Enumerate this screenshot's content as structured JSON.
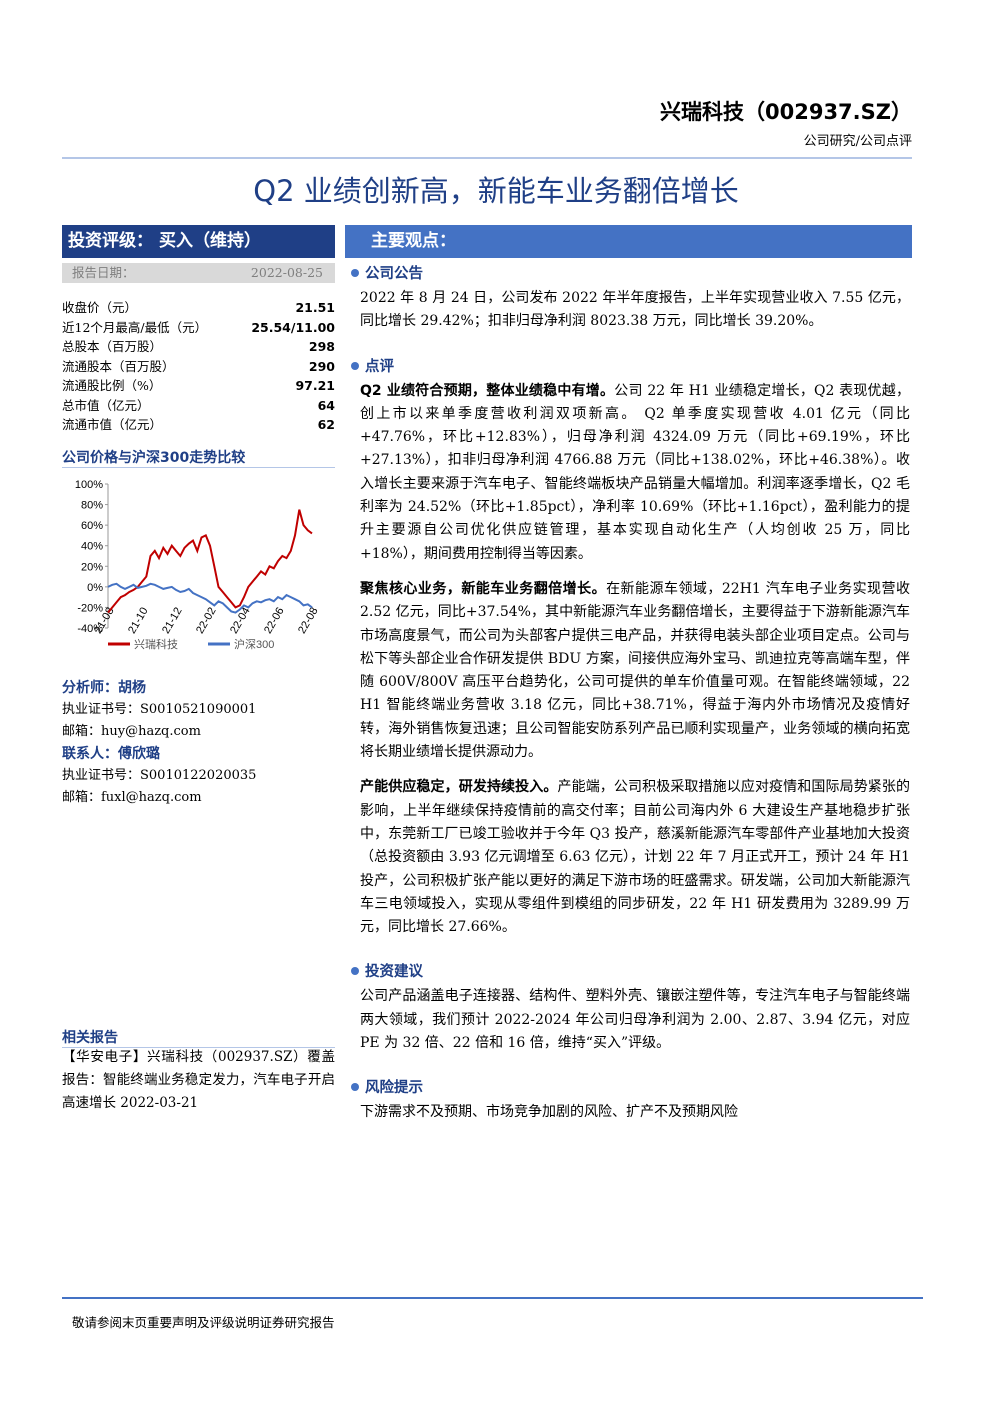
{
  "header": {
    "company": "兴瑞科技（002937.SZ）",
    "category": "公司研究/公司点评"
  },
  "title": "Q2 业绩创新高，新能车业务翻倍增长",
  "rating": {
    "label": "投资评级：",
    "value": "买入（维持）"
  },
  "report_date": {
    "label": "报告日期：",
    "value": "2022-08-25"
  },
  "stock_table": [
    [
      "收盘价（元）",
      "21.51"
    ],
    [
      "近12个月最高/最低（元）",
      "25.54/11.00"
    ],
    [
      "总股本（百万股）",
      "298"
    ],
    [
      "流通股本（百万股）",
      "290"
    ],
    [
      "流通股比例（%）",
      "97.21"
    ],
    [
      "总市值（亿元）",
      "64"
    ],
    [
      "流通市值（亿元）",
      "62"
    ]
  ],
  "chart_data": {
    "type": "line",
    "title": "公司价格与沪深300走势比较",
    "categories": [
      "21-08",
      null,
      null,
      null,
      null,
      null,
      null,
      null,
      "21-10",
      null,
      null,
      null,
      null,
      null,
      null,
      null,
      "21-12",
      null,
      null,
      null,
      null,
      null,
      null,
      null,
      "22-02",
      null,
      null,
      null,
      null,
      null,
      null,
      null,
      "22-04",
      null,
      null,
      null,
      null,
      null,
      null,
      null,
      "22-06",
      null,
      null,
      null,
      null,
      null,
      null,
      null,
      "22-08"
    ],
    "series": [
      {
        "name": "兴瑞科技",
        "color": "#c00000",
        "values": [
          -25,
          -20,
          -15,
          -10,
          -8,
          -5,
          -3,
          0,
          5,
          10,
          30,
          35,
          28,
          38,
          32,
          40,
          35,
          30,
          38,
          42,
          45,
          35,
          48,
          50,
          40,
          20,
          0,
          -5,
          -10,
          -15,
          -20,
          -18,
          -10,
          0,
          5,
          10,
          15,
          12,
          20,
          18,
          25,
          30,
          28,
          35,
          50,
          75,
          60,
          55,
          52
        ]
      },
      {
        "name": "沪深300",
        "color": "#4472c4",
        "values": [
          0,
          2,
          3,
          0,
          -2,
          0,
          2,
          -1,
          0,
          1,
          3,
          2,
          0,
          -2,
          -1,
          0,
          -3,
          -5,
          -4,
          -2,
          -6,
          -8,
          -10,
          -12,
          -15,
          -18,
          -14,
          -16,
          -20,
          -24,
          -25,
          -22,
          -18,
          -20,
          -16,
          -14,
          -15,
          -13,
          -12,
          -14,
          -10,
          -12,
          -8,
          -10,
          -12,
          -14,
          -18,
          -17,
          -20
        ]
      }
    ],
    "ylim": [
      -40,
      100
    ],
    "yticks": [
      {
        "value": 100,
        "label": "100%"
      },
      {
        "value": 80,
        "label": "80%"
      },
      {
        "value": 60,
        "label": "60%"
      },
      {
        "value": 40,
        "label": "40%"
      },
      {
        "value": 20,
        "label": "20%"
      },
      {
        "value": 0,
        "label": "0%"
      },
      {
        "value": -20,
        "label": "-20%"
      },
      {
        "value": -40,
        "label": "-40%"
      }
    ]
  },
  "analysts": [
    {
      "title": "分析师：胡杨",
      "lines": [
        "执业证书号：S0010521090001",
        "邮箱：huy@hazq.com"
      ]
    },
    {
      "title": "联系人：傅欣璐",
      "lines": [
        "执业证书号：S0010122020035",
        "邮箱：fuxl@hazq.com"
      ]
    }
  ],
  "related": {
    "heading": "相关报告",
    "text": "【华安电子】兴瑞科技（002937.SZ）覆盖报告：智能终端业务稳定发力，汽车电子开启高速增长 2022-03-21"
  },
  "main_heading": "主要观点：",
  "sections": [
    {
      "heading": "公司公告",
      "paragraphs": [
        {
          "lead": "",
          "text": "2022 年 8 月 24 日，公司发布 2022 年半年度报告，上半年实现营业收入 7.55 亿元，同比增长 29.42%；扣非归母净利润 8023.38 万元，同比增长 39.20%。"
        }
      ]
    },
    {
      "heading": "点评",
      "paragraphs": [
        {
          "lead": "Q2 业绩符合预期，整体业绩稳中有增。",
          "text": "公司 22 年 H1 业绩稳定增长，Q2 表现优越，创上市以来单季度营收利润双项新高。 Q2 单季度实现营收 4.01 亿元（同比+47.76%，环比+12.83%），归母净利润 4324.09 万元（同比+69.19%，环比+27.13%），扣非归母净利润 4766.88 万元（同比+138.02%，环比+46.38%）。收入增长主要来源于汽车电子、智能终端板块产品销量大幅增加。利润率逐季增长，Q2 毛利率为 24.52%（环比+1.85pct），净利率 10.69%（环比+1.16pct），盈利能力的提升主要源自公司优化供应链管理，基本实现自动化生产（人均创收 25 万，同比+18%），期间费用控制得当等因素。"
        },
        {
          "lead": "聚焦核心业务，新能车业务翻倍增长。",
          "text": "在新能源车领域，22H1 汽车电子业务实现营收 2.52 亿元，同比+37.54%，其中新能源汽车业务翻倍增长，主要得益于下游新能源汽车市场高度景气，而公司为头部客户提供三电产品，并获得电装头部企业项目定点。公司与松下等头部企业合作研发提供 BDU 方案，间接供应海外宝马、凯迪拉克等高端车型，伴随 600V/800V 高压平台趋势化，公司可提供的单车价值量可观。在智能终端领域，22 H1 智能终端业务营收 3.18 亿元，同比+38.71%，得益于海内外市场情况及疫情好转，海外销售恢复迅速；且公司智能安防系列产品已顺利实现量产，业务领域的横向拓宽将长期业绩增长提供源动力。"
        },
        {
          "lead": "产能供应稳定，研发持续投入。",
          "text": "产能端，公司积极采取措施以应对疫情和国际局势紧张的影响，上半年继续保持疫情前的高交付率；目前公司海内外 6 大建设生产基地稳步扩张中，东莞新工厂已竣工验收并于今年 Q3 投产，慈溪新能源汽车零部件产业基地加大投资（总投资额由 3.93 亿元调增至 6.63 亿元），计划 22 年 7 月正式开工，预计 24 年 H1 投产，公司积极扩张产能以更好的满足下游市场的旺盛需求。研发端，公司加大新能源汽车三电领域投入，实现从零组件到模组的同步研发，22 年 H1 研发费用为 3289.99 万元，同比增长 27.66%。"
        }
      ]
    },
    {
      "heading": "投资建议",
      "paragraphs": [
        {
          "lead": "",
          "text": "公司产品涵盖电子连接器、结构件、塑料外壳、镶嵌注塑件等，专注汽车电子与智能终端两大领域，我们预计 2022-2024 年公司归母净利润为 2.00、2.87、3.94 亿元，对应 PE 为 32 倍、22 倍和 16 倍，维持“买入”评级。"
        }
      ]
    },
    {
      "heading": "风险提示",
      "paragraphs": [
        {
          "lead": "",
          "text": "下游需求不及预期、市场竞争加剧的风险、扩产不及预期风险"
        }
      ]
    }
  ],
  "footer": "敬请参阅末页重要声明及评级说明证券研究报告"
}
